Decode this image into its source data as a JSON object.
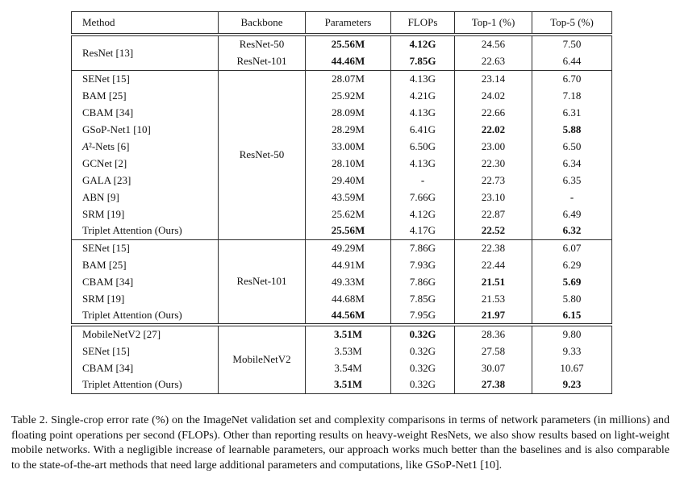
{
  "table": {
    "columns": {
      "method": "Method",
      "backbone": "Backbone",
      "parameters": "Parameters",
      "flops": "FLOPs",
      "top1": "Top-1 (%)",
      "top5": "Top-5 (%)"
    },
    "groups": [
      {
        "method": "ResNet [13]",
        "rows": [
          {
            "backbone": "ResNet-50",
            "params": "25.56M",
            "flops": "4.12G",
            "top1": "24.56",
            "top5": "7.50"
          },
          {
            "backbone": "ResNet-101",
            "params": "44.46M",
            "flops": "7.85G",
            "top1": "22.63",
            "top5": "6.44"
          }
        ]
      },
      {
        "backbone": "ResNet-50",
        "rows": [
          {
            "method": "SENet [15]",
            "params": "28.07M",
            "flops": "4.13G",
            "top1": "23.14",
            "top5": "6.70"
          },
          {
            "method": "BAM [25]",
            "params": "25.92M",
            "flops": "4.21G",
            "top1": "24.02",
            "top5": "7.18"
          },
          {
            "method": "CBAM [34]",
            "params": "28.09M",
            "flops": "4.13G",
            "top1": "22.66",
            "top5": "6.31"
          },
          {
            "method": "GSoP-Net1 [10]",
            "params": "28.29M",
            "flops": "6.41G",
            "top1": "22.02",
            "top5": "5.88"
          },
          {
            "method": "A²-Nets [6]",
            "params": "33.00M",
            "flops": "6.50G",
            "top1": "23.00",
            "top5": "6.50"
          },
          {
            "method": "GCNet [2]",
            "params": "28.10M",
            "flops": "4.13G",
            "top1": "22.30",
            "top5": "6.34"
          },
          {
            "method": "GALA [23]",
            "params": "29.40M",
            "flops": "-",
            "top1": "22.73",
            "top5": "6.35"
          },
          {
            "method": "ABN [9]",
            "params": "43.59M",
            "flops": "7.66G",
            "top1": "23.10",
            "top5": "-"
          },
          {
            "method": "SRM [19]",
            "params": "25.62M",
            "flops": "4.12G",
            "top1": "22.87",
            "top5": "6.49"
          },
          {
            "method": "Triplet Attention (Ours)",
            "params": "25.56M",
            "flops": "4.17G",
            "top1": "22.52",
            "top5": "6.32"
          }
        ]
      },
      {
        "backbone": "ResNet-101",
        "rows": [
          {
            "method": "SENet [15]",
            "params": "49.29M",
            "flops": "7.86G",
            "top1": "22.38",
            "top5": "6.07"
          },
          {
            "method": "BAM [25]",
            "params": "44.91M",
            "flops": "7.93G",
            "top1": "22.44",
            "top5": "6.29"
          },
          {
            "method": "CBAM [34]",
            "params": "49.33M",
            "flops": "7.86G",
            "top1": "21.51",
            "top5": "5.69"
          },
          {
            "method": "SRM [19]",
            "params": "44.68M",
            "flops": "7.85G",
            "top1": "21.53",
            "top5": "5.80"
          },
          {
            "method": "Triplet Attention (Ours)",
            "params": "44.56M",
            "flops": "7.95G",
            "top1": "21.97",
            "top5": "6.15"
          }
        ]
      },
      {
        "backbone": "MobileNetV2",
        "rows": [
          {
            "method": "MobileNetV2 [27]",
            "params": "3.51M",
            "flops": "0.32G",
            "top1": "28.36",
            "top5": "9.80"
          },
          {
            "method": "SENet [15]",
            "params": "3.53M",
            "flops": "0.32G",
            "top1": "27.58",
            "top5": "9.33"
          },
          {
            "method": "CBAM [34]",
            "params": "3.54M",
            "flops": "0.32G",
            "top1": "30.07",
            "top5": "10.67"
          },
          {
            "method": "Triplet Attention (Ours)",
            "params": "3.51M",
            "flops": "0.32G",
            "top1": "27.38",
            "top5": "9.23"
          }
        ]
      }
    ]
  },
  "caption": "Table 2. Single-crop error rate (%) on the ImageNet validation set and complexity comparisons in terms of network parameters (in millions) and floating point operations per second (FLOPs). Other than reporting results on heavy-weight ResNets, we also show results based on light-weight mobile networks. With a negligible increase of learnable parameters, our approach works much better than the baselines and is also comparable to the state-of-the-art methods that need large additional parameters and computations, like GSoP-Net1 [10]."
}
